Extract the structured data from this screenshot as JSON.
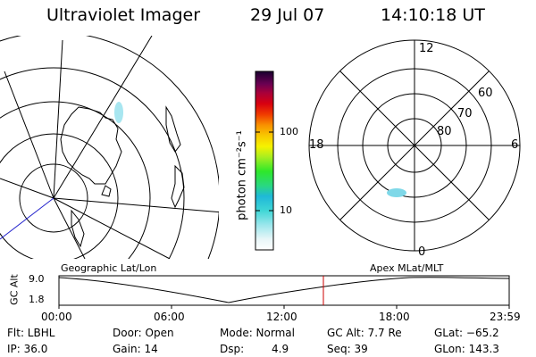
{
  "header": {
    "title": "Ultraviolet Imager",
    "date": "29 Jul 07",
    "time": "14:10:18 UT"
  },
  "colorbar": {
    "unit_label": "photon cm⁻²s⁻¹",
    "tick_100": "100",
    "tick_10": "10"
  },
  "polar_plot": {
    "mlt_labels": {
      "top": "12",
      "left": "18",
      "right": "6",
      "bottom": "0"
    },
    "lat_labels": {
      "outer": "60",
      "middle": "70",
      "inner": "80"
    }
  },
  "timeline": {
    "left_caption": "Geographic Lat/Lon",
    "right_caption": "Apex MLat/MLT",
    "axis_title": "GC Alt",
    "y_ticks": [
      "9.0",
      "1.8"
    ],
    "x_ticks": [
      "00:00",
      "06:00",
      "12:00",
      "18:00",
      "23:59"
    ],
    "current_time_label": "14:10:18 UT"
  },
  "status": {
    "row1": {
      "filter": "Flt: LBHL",
      "door": "Door: Open",
      "mode": "Mode: Normal",
      "gc_alt": "GC Alt: 7.7 Re",
      "glat": "GLat: −65.2"
    },
    "row2": {
      "ip": "IP: 36.0",
      "gain": "Gain: 14",
      "dsp_label": "Dsp:",
      "dsp_value": "4.9",
      "seq": "Seq: 39",
      "glon": "GLon: 143.3"
    }
  },
  "colors": {
    "line": "#000000",
    "marker": "#cc0000",
    "aurora": "#7fd8e8",
    "blue_line": "#2222cc"
  }
}
